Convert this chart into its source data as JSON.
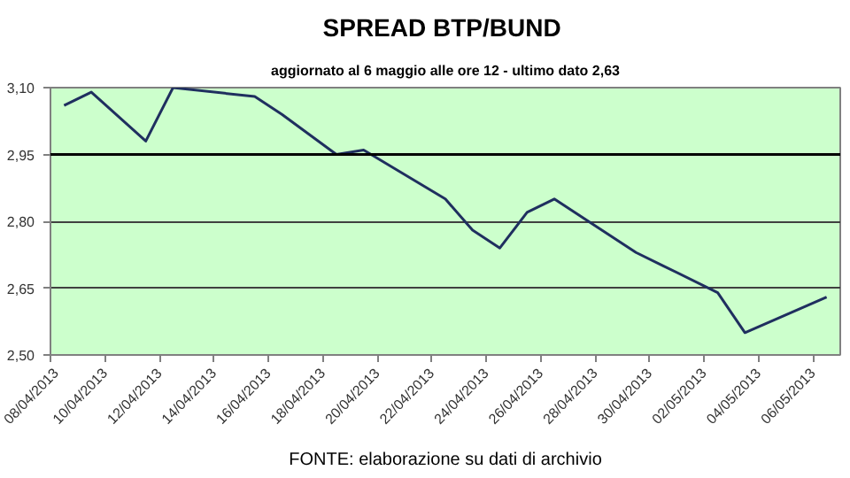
{
  "chart_data": {
    "type": "line",
    "title": "SPREAD  BTP/BUND",
    "subtitle": "aggiornato al 6 maggio alle ore 12 - ultimo dato 2,63",
    "x": [
      "2013-04-08T12:00",
      "2013-04-09T12:00",
      "2013-04-11T12:00",
      "2013-04-12T12:00",
      "2013-04-15T12:00",
      "2013-04-16T12:00",
      "2013-04-18T12:00",
      "2013-04-19T12:00",
      "2013-04-22T12:00",
      "2013-04-23T12:00",
      "2013-04-24T12:00",
      "2013-04-25T12:00",
      "2013-04-26T12:00",
      "2013-04-29T12:00",
      "2013-04-30T12:00",
      "2013-05-02T12:00",
      "2013-05-03T12:00",
      "2013-05-06T12:00"
    ],
    "series": [
      {
        "color": "#1f2f5f",
        "values": [
          3.06,
          3.09,
          2.98,
          3.1,
          3.08,
          3.04,
          2.95,
          2.96,
          2.85,
          2.78,
          2.74,
          2.82,
          2.85,
          2.73,
          2.7,
          2.64,
          2.55,
          2.63
        ]
      }
    ],
    "xlim": [
      "2013-04-08",
      "2013-05-07"
    ],
    "xticks": [
      {
        "value": "2013-04-08",
        "label": "08/04/2013"
      },
      {
        "value": "2013-04-10",
        "label": "10/04/2013"
      },
      {
        "value": "2013-04-12",
        "label": "12/04/2013"
      },
      {
        "value": "2013-04-14",
        "label": "14/04/2013"
      },
      {
        "value": "2013-04-16",
        "label": "16/04/2013"
      },
      {
        "value": "2013-04-18",
        "label": "18/04/2013"
      },
      {
        "value": "2013-04-20",
        "label": "20/04/2013"
      },
      {
        "value": "2013-04-22",
        "label": "22/04/2013"
      },
      {
        "value": "2013-04-24",
        "label": "24/04/2013"
      },
      {
        "value": "2013-04-26",
        "label": "26/04/2013"
      },
      {
        "value": "2013-04-28",
        "label": "28/04/2013"
      },
      {
        "value": "2013-04-30",
        "label": "30/04/2013"
      },
      {
        "value": "2013-05-02",
        "label": "02/05/2013"
      },
      {
        "value": "2013-05-04",
        "label": "04/05/2013"
      },
      {
        "value": "2013-05-06",
        "label": "06/05/2013"
      }
    ],
    "ylim": [
      2.5,
      3.1
    ],
    "yticks": [
      {
        "value": 2.5,
        "label": "2,50"
      },
      {
        "value": 2.65,
        "label": "2,65"
      },
      {
        "value": 2.8,
        "label": "2,80"
      },
      {
        "value": 2.95,
        "label": "2,95"
      },
      {
        "value": 3.1,
        "label": "3,10"
      }
    ],
    "ref_lines": [
      {
        "axis": "y",
        "value": 2.95,
        "color": "#000000"
      }
    ],
    "grid": "y",
    "marker": "none",
    "line_style": "solid",
    "annotations": [
      "FONTE: elaborazione su dati di archivio"
    ]
  }
}
